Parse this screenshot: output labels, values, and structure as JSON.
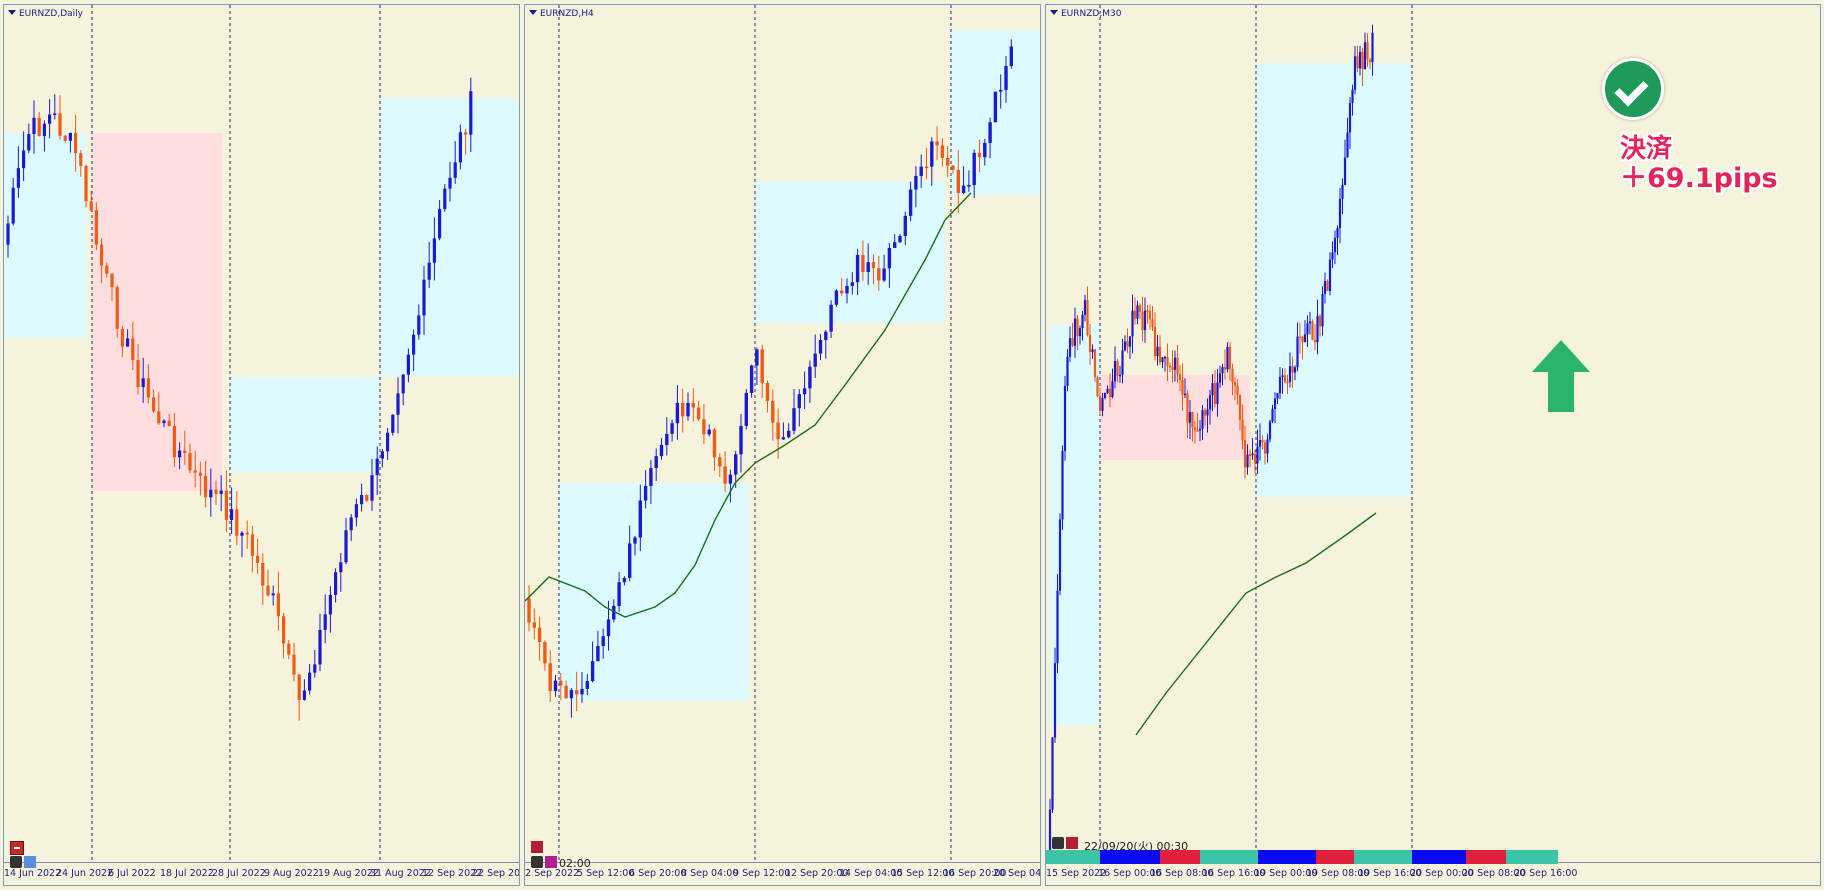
{
  "charts": [
    {
      "id": "daily",
      "title": "EURNZD,Daily",
      "x_ticks": [
        "14 Jun 2022",
        "24 Jun 2022",
        "6 Jul 2022",
        "18 Jul 2022",
        "28 Jul 2022",
        "9 Aug 2022",
        "19 Aug 2022",
        "31 Aug 2022",
        "12 Sep 2022",
        "22 Sep 2022"
      ]
    },
    {
      "id": "h4",
      "title": "EURNZD,H4",
      "x_ticks": [
        "2 Sep 2022",
        "5 Sep 12:00",
        "6 Sep 20:00",
        "8 Sep 04:00",
        "9 Sep 12:00",
        "12 Sep 20:00",
        "14 Sep 04:00",
        "15 Sep 12:00",
        "16 Sep 20:00",
        "20 Sep 04:00"
      ],
      "crosshair_time": "02:00"
    },
    {
      "id": "m30",
      "title": "EURNZD,M30",
      "x_ticks": [
        "15 Sep 2022",
        "16 Sep 00:00",
        "16 Sep 08:00",
        "16 Sep 16:00",
        "19 Sep 00:00",
        "19 Sep 08:00",
        "19 Sep 16:00",
        "20 Sep 00:00",
        "20 Sep 08:00",
        "20 Sep 16:00"
      ],
      "timestamp": "22/09/20(火) 00:30"
    }
  ],
  "annotation": {
    "line1": "決済",
    "line2": "＋69.1pips",
    "icon": "check-circle-icon",
    "arrow": "up-arrow-icon"
  },
  "colors": {
    "background": "#f5f3dc",
    "bull_candle": "#1a1ad0",
    "bear_candle": "#f05a14",
    "moving_average": "#1a6e1a",
    "range_blue": "#dcfaff",
    "range_pink": "#ffdede",
    "check": "#1e9b5a",
    "annotation_text": "#e5245b",
    "arrow": "#2ab36a"
  }
}
